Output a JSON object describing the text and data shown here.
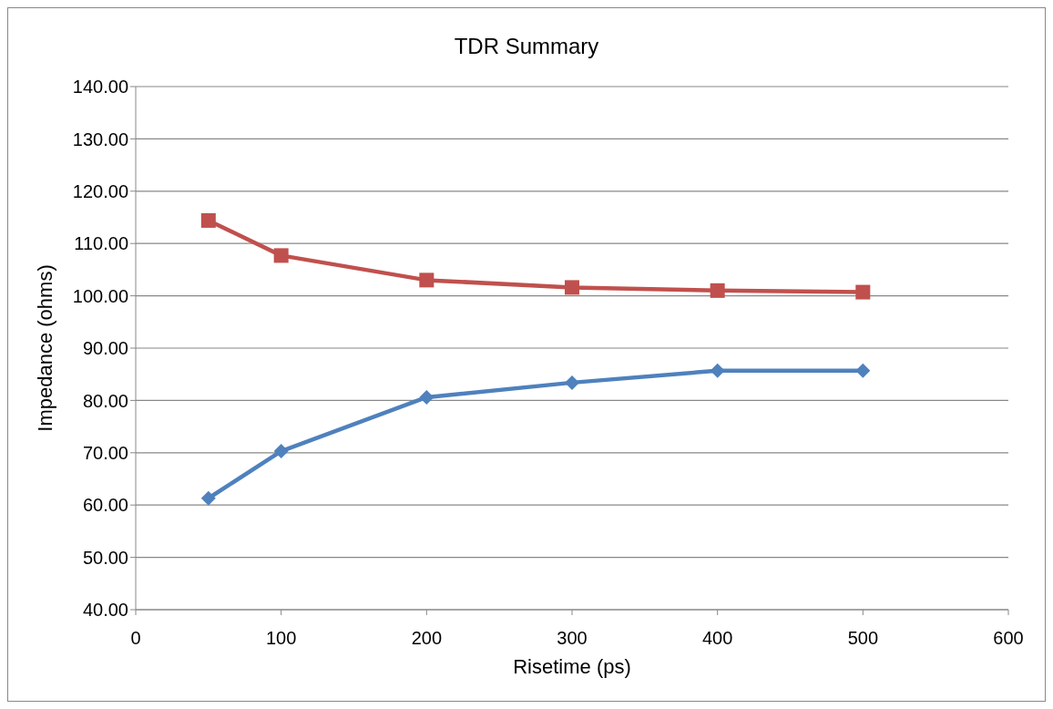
{
  "chart_data": {
    "type": "line",
    "title": "TDR Summary",
    "xlabel": "Risetime (ps)",
    "ylabel": "Impedance (ohms)",
    "x": [
      50,
      100,
      200,
      300,
      400,
      500
    ],
    "series": [
      {
        "color": "#c0504d",
        "marker": "square",
        "values": [
          114.4,
          107.7,
          103.0,
          101.6,
          101.0,
          100.7
        ]
      },
      {
        "color": "#4f81bd",
        "marker": "diamond",
        "values": [
          61.3,
          70.3,
          80.6,
          83.4,
          85.7,
          85.7
        ]
      }
    ],
    "xlim": [
      0,
      600
    ],
    "xticks": [
      0,
      100,
      200,
      300,
      400,
      500,
      600
    ],
    "ylim": [
      40,
      140
    ],
    "yticks": [
      {
        "value": 40,
        "label": "40.00"
      },
      {
        "value": 50,
        "label": "50.00"
      },
      {
        "value": 60,
        "label": "60.00"
      },
      {
        "value": 70,
        "label": "70.00"
      },
      {
        "value": 80,
        "label": "80.00"
      },
      {
        "value": 90,
        "label": "90.00"
      },
      {
        "value": 100,
        "label": "100.00"
      },
      {
        "value": 110,
        "label": "110.00"
      },
      {
        "value": 120,
        "label": "120.00"
      },
      {
        "value": 130,
        "label": "130.00"
      },
      {
        "value": 140,
        "label": "140.00"
      }
    ],
    "grid": "y",
    "line_style": "solid"
  }
}
